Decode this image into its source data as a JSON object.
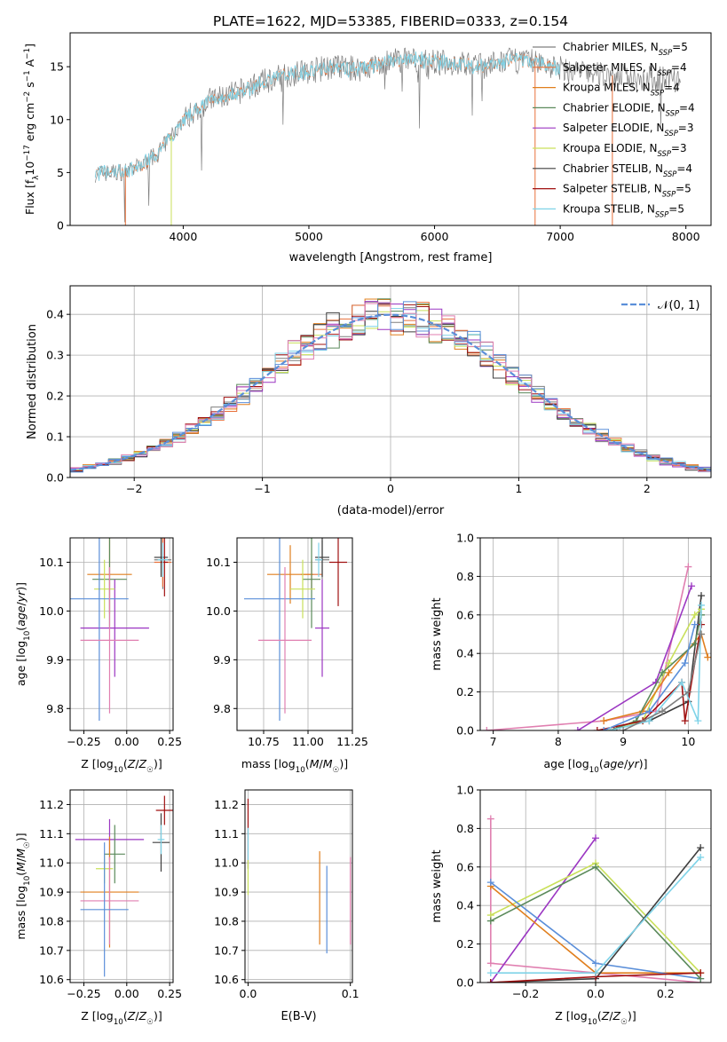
{
  "colors": {
    "Chabrier MILES": "#7f7f7f",
    "Salpeter MILES": "#e8703a",
    "Kroupa MILES": "#e07f1e",
    "Chabrier ELODIE": "#5b8a5b",
    "Salpeter ELODIE": "#9b36c2",
    "Kroupa ELODIE": "#c9e05a",
    "Chabrier STELIB": "#3f3f3f",
    "Salpeter STELIB": "#a01010",
    "Kroupa STELIB": "#7fd3e8",
    "blue": "#5b8fd9",
    "pink": "#e07fb0"
  },
  "chart_data": [
    {
      "id": "spectrum",
      "type": "line",
      "title": "PLATE=1622, MJD=53385, FIBERID=0333, z=0.154",
      "xlabel": "wavelength [Angstrom, rest frame]",
      "ylabel": "Flux [f_λ 10^-17 erg cm^-2 s^-1 A^-1]",
      "xlim": [
        3100,
        8200
      ],
      "ylim": [
        0,
        18.2
      ],
      "xticks": [
        4000,
        5000,
        6000,
        7000,
        8000
      ],
      "yticks": [
        0,
        5,
        10,
        15
      ],
      "grid": false,
      "legend_position": "right",
      "legend": [
        "Chabrier MILES, N_SSP=5",
        "Salpeter MILES, N_SSP=4",
        "Kroupa MILES, N_SSP=4",
        "Chabrier ELODIE, N_SSP=4",
        "Salpeter ELODIE, N_SSP=3",
        "Kroupa ELODIE, N_SSP=3",
        "Chabrier STELIB, N_SSP=4",
        "Salpeter STELIB, N_SSP=5",
        "Kroupa STELIB, N_SSP=5"
      ],
      "continuum": [
        [
          3300,
          4.9
        ],
        [
          3450,
          5.0
        ],
        [
          3600,
          5.2
        ],
        [
          3800,
          6.8
        ],
        [
          4000,
          10.0
        ],
        [
          4200,
          11.8
        ],
        [
          4400,
          12.4
        ],
        [
          4600,
          13.4
        ],
        [
          4800,
          14.2
        ],
        [
          5000,
          14.6
        ],
        [
          5200,
          15.0
        ],
        [
          5400,
          14.8
        ],
        [
          5600,
          15.3
        ],
        [
          5800,
          15.8
        ],
        [
          6000,
          15.4
        ],
        [
          6200,
          15.3
        ],
        [
          6400,
          15.0
        ],
        [
          6600,
          15.6
        ],
        [
          6800,
          15.5
        ],
        [
          7000,
          14.8
        ],
        [
          7200,
          14.4
        ],
        [
          7400,
          14.2
        ],
        [
          7600,
          14.0
        ],
        [
          7800,
          13.8
        ],
        [
          8000,
          13.6
        ]
      ]
    },
    {
      "id": "histogram",
      "type": "bar",
      "xlabel": "(data-model)/error",
      "ylabel": "Normed distribution",
      "xlim": [
        -2.5,
        2.5
      ],
      "ylim": [
        0,
        0.47
      ],
      "xticks": [
        -2,
        -1,
        0,
        1,
        2
      ],
      "yticks": [
        0.0,
        0.1,
        0.2,
        0.3,
        0.4
      ],
      "grid": true,
      "legend": [
        "𝒩(0, 1)"
      ],
      "legend_position": "top-right",
      "bin_width": 0.1,
      "bin_start": -2.5
    },
    {
      "id": "age_vs_Z",
      "type": "scatter",
      "xlabel": "Z [log10(Z/Z☉)]",
      "ylabel": "age  [log10(age/yr)]",
      "xlim": [
        -0.33,
        0.27
      ],
      "ylim": [
        9.755,
        10.15
      ],
      "xticks": [
        -0.25,
        0.0,
        0.25
      ],
      "yticks": [
        9.8,
        9.9,
        10.0,
        10.1
      ],
      "grid": true,
      "points": [
        {
          "c": "Chabrier MILES",
          "x": 0.21,
          "y": 10.105,
          "xe": 0.05,
          "ye": 0.06
        },
        {
          "c": "Salpeter MILES",
          "x": 0.21,
          "y": 10.1,
          "xe": 0.05,
          "ye": 0.05
        },
        {
          "c": "Kroupa MILES",
          "x": -0.1,
          "y": 10.075,
          "xe": 0.13,
          "ye": 0.08
        },
        {
          "c": "Chabrier ELODIE",
          "x": -0.1,
          "y": 10.065,
          "xe": 0.1,
          "ye": 0.1
        },
        {
          "c": "Salpeter ELODIE",
          "x": -0.07,
          "y": 9.965,
          "xe": 0.2,
          "ye": 0.1
        },
        {
          "c": "Kroupa ELODIE",
          "x": -0.13,
          "y": 10.045,
          "xe": 0.06,
          "ye": 0.06
        },
        {
          "c": "Chabrier STELIB",
          "x": 0.2,
          "y": 10.11,
          "xe": 0.04,
          "ye": 0.04
        },
        {
          "c": "Salpeter STELIB",
          "x": 0.22,
          "y": 10.1,
          "xe": 0.02,
          "ye": 0.07
        },
        {
          "c": "Kroupa STELIB",
          "x": 0.21,
          "y": 10.105,
          "xe": 0.03,
          "ye": 0.035
        },
        {
          "c": "blue",
          "x": -0.16,
          "y": 10.025,
          "xe": 0.17,
          "ye": 0.25
        },
        {
          "c": "pink",
          "x": -0.1,
          "y": 9.94,
          "xe": 0.17,
          "ye": 0.15
        }
      ]
    },
    {
      "id": "age_vs_mass",
      "type": "scatter",
      "xlabel": "mass [log10(M/M☉)]",
      "ylabel": "",
      "xlim": [
        10.6,
        11.25
      ],
      "ylim": [
        9.755,
        10.15
      ],
      "xticks": [
        10.75,
        11.0,
        11.25
      ],
      "yticks": [
        9.8,
        9.9,
        10.0,
        10.1
      ],
      "grid": true,
      "points": [
        {
          "c": "Chabrier MILES",
          "x": 11.08,
          "y": 10.105,
          "xe": 0.04,
          "ye": 0.04
        },
        {
          "c": "Salpeter MILES",
          "x": 11.02,
          "y": 10.075,
          "xe": 0.06,
          "ye": 0.03
        },
        {
          "c": "Kroupa MILES",
          "x": 10.9,
          "y": 10.075,
          "xe": 0.13,
          "ye": 0.06
        },
        {
          "c": "Chabrier ELODIE",
          "x": 11.02,
          "y": 10.065,
          "xe": 0.05,
          "ye": 0.1
        },
        {
          "c": "Salpeter ELODIE",
          "x": 11.08,
          "y": 9.965,
          "xe": 0.04,
          "ye": 0.1
        },
        {
          "c": "Kroupa ELODIE",
          "x": 10.97,
          "y": 10.045,
          "xe": 0.07,
          "ye": 0.06
        },
        {
          "c": "Chabrier STELIB",
          "x": 11.08,
          "y": 10.11,
          "xe": 0.04,
          "ye": 0.04
        },
        {
          "c": "Salpeter STELIB",
          "x": 11.17,
          "y": 10.1,
          "xe": 0.05,
          "ye": 0.09
        },
        {
          "c": "Kroupa STELIB",
          "x": 11.06,
          "y": 10.105,
          "xe": 0.02,
          "ye": 0.035
        },
        {
          "c": "blue",
          "x": 10.84,
          "y": 10.025,
          "xe": 0.2,
          "ye": 0.25
        },
        {
          "c": "pink",
          "x": 10.87,
          "y": 9.94,
          "xe": 0.15,
          "ye": 0.15
        }
      ]
    },
    {
      "id": "massweight_vs_age",
      "type": "line",
      "xlabel": "age  [log10(age/yr)]",
      "ylabel": "mass weight",
      "xlim": [
        6.8,
        10.35
      ],
      "ylim": [
        0,
        1.0
      ],
      "xticks": [
        7,
        8,
        9,
        10
      ],
      "yticks": [
        0.0,
        0.2,
        0.4,
        0.6,
        0.8,
        1.0
      ],
      "grid": true,
      "series": [
        {
          "c": "pink",
          "x": [
            6.9,
            8.7,
            9.5,
            10.0
          ],
          "y": [
            0.0,
            0.05,
            0.1,
            0.85
          ]
        },
        {
          "c": "Salpeter ELODIE",
          "x": [
            8.3,
            9.5,
            10.05
          ],
          "y": [
            0.0,
            0.25,
            0.75
          ]
        },
        {
          "c": "Chabrier STELIB",
          "x": [
            8.9,
            9.4,
            10.0,
            10.2
          ],
          "y": [
            0.01,
            0.05,
            0.15,
            0.7
          ]
        },
        {
          "c": "Kroupa ELODIE",
          "x": [
            8.8,
            9.3,
            9.7,
            10.1,
            10.2
          ],
          "y": [
            0.0,
            0.05,
            0.35,
            0.6,
            0.63
          ]
        },
        {
          "c": "Kroupa MILES",
          "x": [
            8.7,
            9.3,
            9.7,
            10.2,
            10.3
          ],
          "y": [
            0.05,
            0.1,
            0.3,
            0.5,
            0.38
          ]
        },
        {
          "c": "Chabrier ELODIE",
          "x": [
            8.8,
            9.2,
            9.6,
            10.1,
            10.2
          ],
          "y": [
            0.0,
            0.05,
            0.3,
            0.45,
            0.6
          ]
        },
        {
          "c": "Salpeter STELIB",
          "x": [
            8.6,
            9.3,
            9.9,
            9.95,
            10.2
          ],
          "y": [
            0.0,
            0.05,
            0.25,
            0.05,
            0.55
          ]
        },
        {
          "c": "blue",
          "x": [
            8.7,
            9.4,
            9.95,
            10.1
          ],
          "y": [
            0.0,
            0.1,
            0.35,
            0.55
          ]
        },
        {
          "c": "Kroupa STELIB",
          "x": [
            8.8,
            9.4,
            9.9,
            10.15,
            10.2
          ],
          "y": [
            0.0,
            0.05,
            0.25,
            0.05,
            0.65
          ]
        },
        {
          "c": "Chabrier MILES",
          "x": [
            9.0,
            9.6,
            10.0,
            10.2
          ],
          "y": [
            0.0,
            0.1,
            0.2,
            0.5
          ]
        }
      ]
    },
    {
      "id": "mass_vs_Z",
      "type": "scatter",
      "xlabel": "Z [log10(Z/Z☉)]",
      "ylabel": "mass [log10(M/M☉)]",
      "xlim": [
        -0.33,
        0.27
      ],
      "ylim": [
        10.59,
        11.25
      ],
      "xticks": [
        -0.25,
        0.0,
        0.25
      ],
      "yticks": [
        10.6,
        10.7,
        10.8,
        10.9,
        11.0,
        11.1,
        11.2
      ],
      "grid": true,
      "points": [
        {
          "c": "Salpeter STELIB",
          "x": 0.22,
          "y": 11.18,
          "xe": 0.05,
          "ye": 0.05
        },
        {
          "c": "Salpeter ELODIE",
          "x": -0.1,
          "y": 11.08,
          "xe": 0.2,
          "ye": 0.07
        },
        {
          "c": "Chabrier STELIB",
          "x": 0.2,
          "y": 11.07,
          "xe": 0.05,
          "ye": 0.1
        },
        {
          "c": "Kroupa STELIB",
          "x": 0.2,
          "y": 11.08,
          "xe": 0.02,
          "ye": 0.05
        },
        {
          "c": "Chabrier ELODIE",
          "x": -0.07,
          "y": 11.03,
          "xe": 0.06,
          "ye": 0.1
        },
        {
          "c": "Kroupa ELODIE",
          "x": -0.13,
          "y": 10.98,
          "xe": 0.05,
          "ye": 0.05
        },
        {
          "c": "Kroupa MILES",
          "x": -0.1,
          "y": 10.9,
          "xe": 0.17,
          "ye": 0.19
        },
        {
          "c": "pink",
          "x": -0.1,
          "y": 10.87,
          "xe": 0.17,
          "ye": 0.15
        },
        {
          "c": "blue",
          "x": -0.13,
          "y": 10.84,
          "xe": 0.14,
          "ye": 0.23
        }
      ]
    },
    {
      "id": "mass_vs_EBV",
      "type": "scatter",
      "xlabel": "E(B-V)",
      "ylabel": "",
      "xlim": [
        -0.003,
        0.102
      ],
      "ylim": [
        10.59,
        11.25
      ],
      "xticks": [
        0.0,
        0.1
      ],
      "yticks": [
        10.6,
        10.7,
        10.8,
        10.9,
        11.0,
        11.1,
        11.2
      ],
      "grid": true,
      "points": [
        {
          "c": "Salpeter STELIB",
          "x": 0.0,
          "y": 11.1,
          "xe": 0,
          "ye": 0.12
        },
        {
          "c": "Kroupa STELIB",
          "x": 0.0,
          "y": 11.05,
          "xe": 0,
          "ye": 0.07
        },
        {
          "c": "Kroupa ELODIE",
          "x": 0.0,
          "y": 10.95,
          "xe": 0,
          "ye": 0.06
        },
        {
          "c": "Kroupa MILES",
          "x": 0.07,
          "y": 10.88,
          "xe": 0,
          "ye": 0.16
        },
        {
          "c": "blue",
          "x": 0.077,
          "y": 10.84,
          "xe": 0,
          "ye": 0.15
        },
        {
          "c": "pink",
          "x": 0.1,
          "y": 10.87,
          "xe": 0,
          "ye": 0.15
        }
      ]
    },
    {
      "id": "massweight_vs_Z",
      "type": "line",
      "xlabel": "Z [log10(Z/Z☉)]",
      "ylabel": "mass weight",
      "xlim": [
        -0.33,
        0.33
      ],
      "ylim": [
        0,
        1.0
      ],
      "xticks": [
        -0.2,
        0.0,
        0.2
      ],
      "yticks": [
        0.0,
        0.2,
        0.4,
        0.6,
        0.8,
        1.0
      ],
      "grid": true,
      "series": [
        {
          "c": "pink",
          "x": [
            -0.3,
            -0.3,
            0.3
          ],
          "y": [
            0.85,
            0.1,
            0.0
          ]
        },
        {
          "c": "Salpeter ELODIE",
          "x": [
            -0.3,
            0.0
          ],
          "y": [
            0.0,
            0.75
          ]
        },
        {
          "c": "Kroupa ELODIE",
          "x": [
            -0.3,
            0.0,
            0.3
          ],
          "y": [
            0.35,
            0.62,
            0.05
          ]
        },
        {
          "c": "Kroupa MILES",
          "x": [
            -0.3,
            0.0,
            0.3
          ],
          "y": [
            0.5,
            0.05,
            0.05
          ]
        },
        {
          "c": "blue",
          "x": [
            -0.3,
            0.0,
            0.3
          ],
          "y": [
            0.52,
            0.1,
            0.02
          ]
        },
        {
          "c": "Chabrier ELODIE",
          "x": [
            -0.3,
            0.0,
            0.3
          ],
          "y": [
            0.32,
            0.6,
            0.02
          ]
        },
        {
          "c": "Chabrier STELIB",
          "x": [
            -0.3,
            0.0,
            0.3
          ],
          "y": [
            0.0,
            0.02,
            0.7
          ]
        },
        {
          "c": "Salpeter STELIB",
          "x": [
            -0.3,
            0.0,
            0.3
          ],
          "y": [
            0.0,
            0.03,
            0.05
          ]
        },
        {
          "c": "Kroupa STELIB",
          "x": [
            -0.3,
            0.0,
            0.3
          ],
          "y": [
            0.05,
            0.05,
            0.65
          ]
        }
      ]
    }
  ]
}
